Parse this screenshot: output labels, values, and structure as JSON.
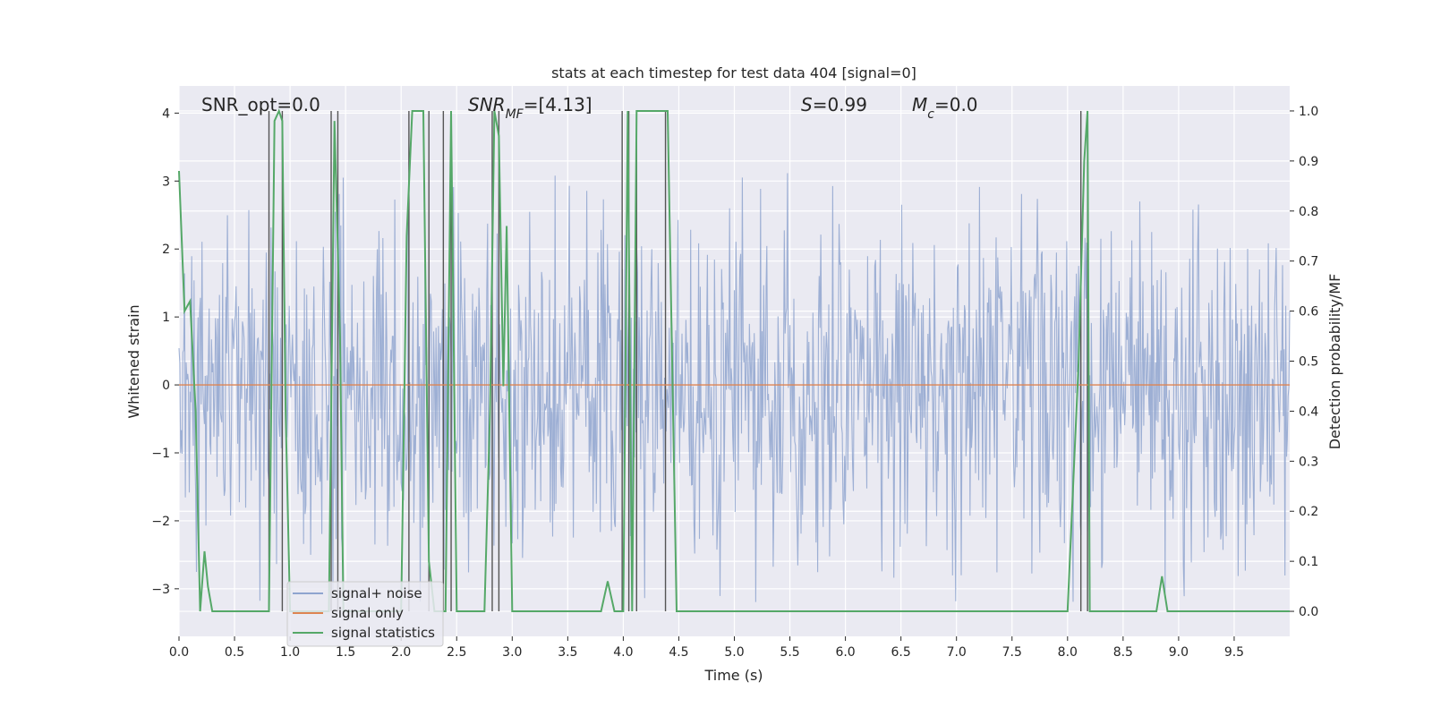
{
  "chart_data": {
    "type": "line",
    "title": "stats at each timestep for test data 404 [signal=0]",
    "xlabel": "Time (s)",
    "ylabel_left": "Whitened strain",
    "ylabel_right": "Detection probability/MF",
    "xlim": [
      0,
      10
    ],
    "ylim_left": [
      -3.7,
      4.4
    ],
    "ylim_right": [
      -0.05,
      1.05
    ],
    "xticks": [
      "0.0",
      "0.5",
      "1.0",
      "1.5",
      "2.0",
      "2.5",
      "3.0",
      "3.5",
      "4.0",
      "4.5",
      "5.0",
      "5.5",
      "6.0",
      "6.5",
      "7.0",
      "7.5",
      "8.0",
      "8.5",
      "9.0",
      "9.5"
    ],
    "yticks_left": [
      "−3",
      "−2",
      "−1",
      "0",
      "1",
      "2",
      "3",
      "4"
    ],
    "yticks_right": [
      "0.0",
      "0.1",
      "0.2",
      "0.3",
      "0.4",
      "0.5",
      "0.6",
      "0.7",
      "0.8",
      "0.9",
      "1.0"
    ],
    "grid": true,
    "legend_position": "lower-left",
    "annotations": [
      {
        "text": "SNR_opt=0.0",
        "x": 0.2
      },
      {
        "text": "SNR_MF=[4.13]",
        "x": 2.6
      },
      {
        "text": "S=0.99",
        "x": 5.6
      },
      {
        "text": "M_c=0.0",
        "x": 6.6
      }
    ],
    "series": [
      {
        "name": "signal+ noise",
        "color": "#8fa4cf",
        "kind": "noise",
        "typical_range": [
          -1.7,
          1.7
        ],
        "peak_range": [
          -3.3,
          4.0
        ]
      },
      {
        "name": "signal only",
        "color": "#dd8452",
        "kind": "constant",
        "value": 0.0
      },
      {
        "name": "signal statistics",
        "color": "#55a868",
        "axis": "right",
        "x": [
          0.0,
          0.05,
          0.1,
          0.15,
          0.19,
          0.23,
          0.26,
          0.3,
          0.81,
          0.86,
          0.9,
          0.93,
          0.96,
          1.0,
          1.05,
          1.35,
          1.4,
          1.45,
          1.48,
          1.52,
          2.0,
          2.05,
          2.1,
          2.15,
          2.2,
          2.25,
          2.3,
          2.35,
          2.4,
          2.45,
          2.5,
          2.75,
          2.8,
          2.84,
          2.88,
          2.92,
          2.95,
          3.0,
          3.05,
          3.8,
          3.86,
          3.92,
          3.98,
          4.0,
          4.04,
          4.08,
          4.12,
          4.16,
          4.2,
          4.25,
          4.3,
          4.35,
          4.4,
          4.48,
          8.0,
          8.1,
          8.15,
          8.18,
          8.2,
          8.25,
          8.8,
          8.85,
          8.9,
          10.0
        ],
        "y": [
          0.88,
          0.6,
          0.62,
          0.4,
          0.0,
          0.12,
          0.05,
          0.0,
          0.0,
          0.98,
          1.0,
          0.98,
          0.4,
          0.0,
          0.0,
          0.0,
          0.98,
          0.55,
          0.0,
          0.0,
          0.0,
          0.75,
          1.0,
          1.0,
          1.0,
          0.1,
          0.0,
          0.0,
          0.0,
          1.0,
          0.0,
          0.0,
          0.4,
          1.0,
          0.95,
          0.45,
          0.77,
          0.0,
          0.0,
          0.0,
          0.06,
          0.0,
          0.0,
          0.0,
          1.0,
          0.0,
          1.0,
          1.0,
          1.0,
          1.0,
          1.0,
          1.0,
          1.0,
          0.0,
          0.0,
          0.5,
          0.9,
          1.0,
          0.0,
          0.0,
          0.0,
          0.07,
          0.0,
          0.0
        ]
      }
    ],
    "vertical_lines_x": [
      0.81,
      0.93,
      1.37,
      1.43,
      2.07,
      2.25,
      2.38,
      2.45,
      2.82,
      2.88,
      3.99,
      4.05,
      4.12,
      4.38,
      8.12,
      8.18
    ]
  }
}
